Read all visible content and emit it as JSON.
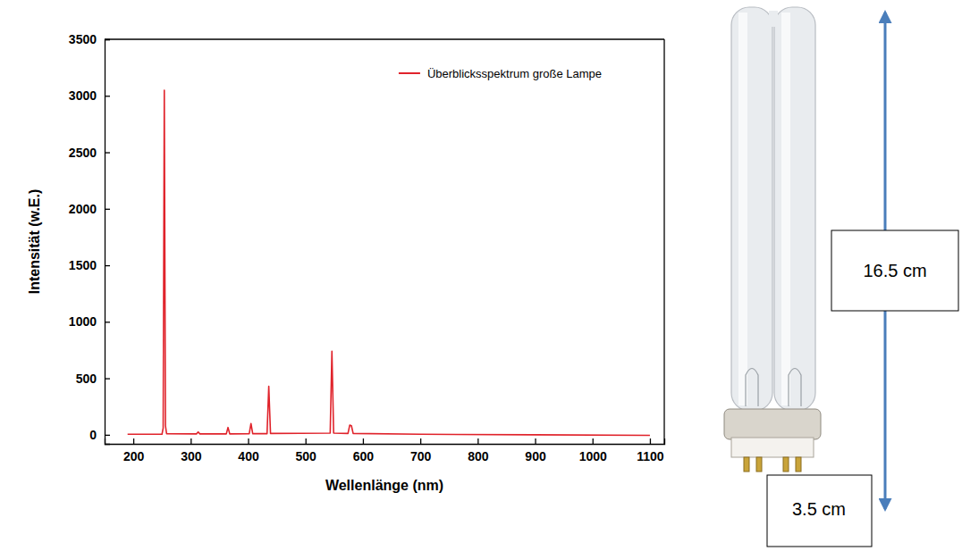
{
  "chart_data": {
    "type": "line",
    "x_label": "Wellenlänge (nm)",
    "y_label": "Intensität (w.E.)",
    "x": [
      190,
      250,
      252,
      254,
      256,
      258,
      310,
      313,
      316,
      362,
      365,
      368,
      402,
      405,
      408,
      433,
      436,
      439,
      543,
      546,
      549,
      574,
      577,
      580,
      583,
      700,
      900,
      1100
    ],
    "series": [
      {
        "name": "Überblicksspektrum große Lampe",
        "color": "#e0232b",
        "values": [
          5,
          5,
          60,
          3050,
          80,
          10,
          8,
          25,
          8,
          8,
          65,
          8,
          10,
          100,
          10,
          10,
          430,
          12,
          15,
          740,
          15,
          12,
          85,
          80,
          12,
          5,
          0,
          -5
        ]
      }
    ],
    "xlim": [
      150,
      1125
    ],
    "xticks": [
      200,
      300,
      400,
      500,
      600,
      700,
      800,
      900,
      1000,
      1100
    ],
    "ylim": [
      -80,
      3500
    ],
    "yticks": [
      0,
      500,
      1000,
      1500,
      2000,
      2500,
      3000,
      3500
    ],
    "legend": "upper right",
    "grid": false
  },
  "lamp": {
    "length_label": "16.5 cm",
    "base_label": "3.5 cm"
  }
}
